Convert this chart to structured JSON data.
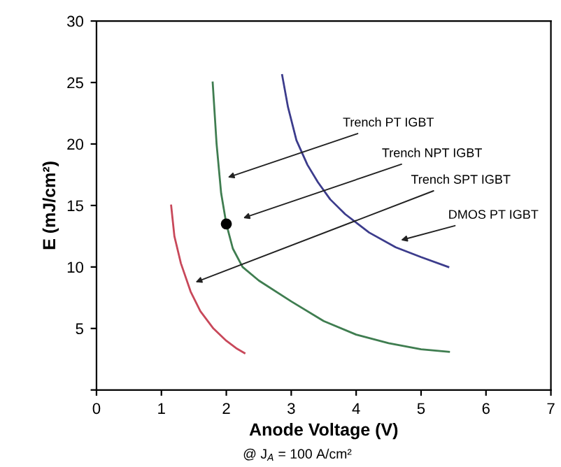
{
  "chart_data": {
    "type": "line",
    "xlabel": "Anode Voltage (V)",
    "ylabel": "E (mJ/cm²)",
    "xlim": [
      0,
      7
    ],
    "xticks": [
      0,
      1,
      2,
      3,
      4,
      5,
      6,
      7
    ],
    "ylim": [
      0,
      30
    ],
    "yticks": [
      {
        "value": 0,
        "label": null
      },
      5,
      10,
      15,
      20,
      25,
      30
    ],
    "grid": false,
    "legend": false,
    "marker": "none",
    "line_style": "solid",
    "series": [
      {
        "color": "#c8485a",
        "x": [
          1.15,
          1.2,
          1.3,
          1.45,
          1.6,
          1.8,
          2.0,
          2.15,
          2.28
        ],
        "values": [
          15,
          12.5,
          10.3,
          8,
          6.4,
          5,
          4,
          3.4,
          3.0
        ]
      },
      {
        "color": "#3f7d50",
        "x": [
          1.79,
          1.85,
          1.92,
          2.0,
          2.1,
          2.25,
          2.5,
          3.0,
          3.5,
          4.0,
          4.5,
          5.0,
          5.43
        ],
        "values": [
          25,
          20,
          16,
          13.5,
          11.5,
          10,
          8.9,
          7.2,
          5.6,
          4.5,
          3.8,
          3.3,
          3.1
        ]
      },
      {
        "color": "#3c3c8c",
        "x": [
          2.86,
          2.95,
          3.08,
          3.25,
          3.41,
          3.6,
          3.83,
          4.2,
          4.61,
          5.0,
          5.42
        ],
        "values": [
          25.6,
          23,
          20.3,
          18.3,
          16.9,
          15.5,
          14.3,
          12.8,
          11.6,
          10.8,
          10.0
        ]
      },
      {
        "type": "scatter",
        "color": "#000000",
        "marker": "circle",
        "x": [
          2.0
        ],
        "values": [
          13.5
        ]
      }
    ],
    "annotations": [
      "Trench PT IGBT",
      "Trench NPT IGBT",
      "Trench SPT IGBT",
      "DMOS PT IGBT",
      "@ J$_{A}$ = 100 A/cm²"
    ]
  }
}
